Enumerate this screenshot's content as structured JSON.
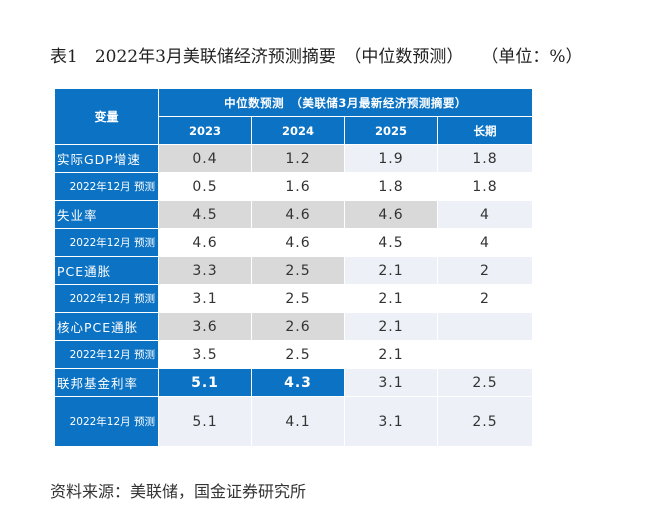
{
  "title": {
    "main": "表1　2022年3月美联储经济预测摘要　（中位数预测）",
    "unit": "（单位：%）"
  },
  "table": {
    "var_header": "变量",
    "group_header": "中位数预测　（美联储3月最新经济预测摘要）",
    "columns": [
      "2023",
      "2024",
      "2025",
      "长期"
    ],
    "rows": [
      {
        "label": "实际GDP增速",
        "values": [
          "0.4",
          "1.2",
          "1.9",
          "1.8"
        ]
      },
      {
        "label": "2022年12月 预测",
        "values": [
          "0.5",
          "1.6",
          "1.8",
          "1.8"
        ]
      },
      {
        "label": "失业率",
        "values": [
          "4.5",
          "4.6",
          "4.6",
          "4"
        ]
      },
      {
        "label": "2022年12月 预测",
        "values": [
          "4.6",
          "4.6",
          "4.5",
          "4"
        ]
      },
      {
        "label": "PCE通胀",
        "values": [
          "3.3",
          "2.5",
          "2.1",
          "2"
        ]
      },
      {
        "label": "2022年12月 预测",
        "values": [
          "3.1",
          "2.5",
          "2.1",
          "2"
        ]
      },
      {
        "label": "核心PCE通胀",
        "values": [
          "3.6",
          "2.6",
          "2.1",
          ""
        ]
      },
      {
        "label": "2022年12月 预测",
        "values": [
          "3.5",
          "2.5",
          "2.1",
          ""
        ]
      },
      {
        "label": "联邦基金利率",
        "values": [
          "5.1",
          "4.3",
          "3.1",
          "2.5"
        ]
      },
      {
        "label": "2022年12月 预测",
        "values": [
          "5.1",
          "4.1",
          "3.1",
          "2.5"
        ]
      }
    ]
  },
  "source": "资料来源：美联储，国金证券研究所",
  "colors": {
    "header_blue": "#0b72c4",
    "gray": "#d9d9d9",
    "light": "#edf1f7"
  }
}
